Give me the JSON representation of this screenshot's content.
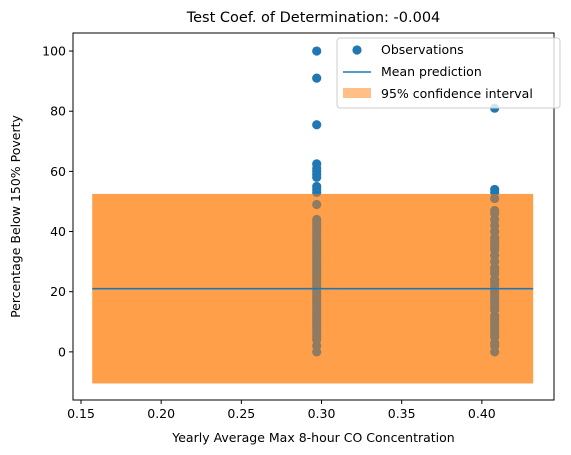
{
  "chart_data": {
    "type": "scatter",
    "title": "Test Coef. of Determination: -0.004",
    "xlabel": "Yearly Average Max 8-hour CO Concentration",
    "ylabel": "Percentage Below 150% Poverty",
    "xlim": [
      0.145,
      0.445
    ],
    "ylim": [
      -16,
      106
    ],
    "xticks": [
      0.15,
      0.2,
      0.25,
      0.3,
      0.35,
      0.4
    ],
    "xtick_labels": [
      "0.15",
      "0.20",
      "0.25",
      "0.30",
      "0.35",
      "0.40"
    ],
    "yticks": [
      0,
      20,
      40,
      60,
      80,
      100
    ],
    "ytick_labels": [
      "0",
      "20",
      "40",
      "60",
      "80",
      "100"
    ],
    "grid": false,
    "legend_position": "top-right",
    "legend": [
      "Observations",
      "Mean prediction",
      "95% confidence interval"
    ],
    "colors": {
      "observations": "#1f77b4",
      "mean_line": "#1f77b4",
      "interval": "#ffbf86"
    },
    "mean_prediction": {
      "x": [
        0.157,
        0.432
      ],
      "y": 21
    },
    "confidence_interval": {
      "x": [
        0.157,
        0.432
      ],
      "lower": -10.5,
      "upper": 52.5
    },
    "series": [
      {
        "name": "Observations",
        "x": [
          0.297,
          0.297,
          0.297,
          0.297,
          0.297,
          0.297,
          0.297,
          0.297,
          0.297,
          0.297,
          0.297,
          0.297,
          0.297,
          0.297,
          0.297,
          0.297,
          0.297,
          0.297,
          0.297,
          0.297,
          0.297,
          0.297,
          0.297,
          0.297,
          0.297,
          0.297,
          0.297,
          0.297,
          0.297,
          0.297,
          0.297,
          0.297,
          0.297,
          0.297,
          0.297,
          0.297,
          0.297,
          0.297,
          0.297,
          0.297,
          0.297,
          0.297,
          0.297,
          0.297,
          0.297,
          0.297,
          0.297,
          0.297,
          0.297,
          0.297,
          0.297,
          0.297,
          0.297,
          0.297,
          0.297,
          0.408,
          0.408,
          0.408,
          0.408,
          0.408,
          0.408,
          0.408,
          0.408,
          0.408,
          0.408,
          0.408,
          0.408,
          0.408,
          0.408,
          0.408,
          0.408,
          0.408,
          0.408,
          0.408,
          0.408,
          0.408,
          0.408,
          0.408,
          0.408,
          0.408,
          0.408,
          0.408,
          0.408,
          0.408,
          0.408,
          0.408,
          0.408,
          0.408,
          0.408,
          0.408,
          0.408,
          0.408,
          0.408,
          0.408,
          0.408
        ],
        "y": [
          100,
          91,
          75.5,
          62.5,
          61,
          60,
          59,
          58,
          55,
          54,
          53,
          49,
          44,
          43,
          42,
          41,
          40,
          39,
          38,
          37,
          36,
          35,
          34,
          33,
          32,
          31,
          30,
          29,
          28,
          27,
          26,
          25,
          24,
          23,
          22,
          21,
          20,
          19,
          18,
          17,
          16,
          15,
          14,
          13,
          12,
          11,
          10,
          9,
          8,
          7,
          6,
          5,
          4,
          2,
          0,
          81,
          54,
          53,
          51,
          47,
          46,
          44,
          42,
          40,
          38,
          37,
          36,
          35,
          34,
          32,
          30,
          28,
          27,
          26,
          24,
          23,
          22,
          20,
          19,
          18,
          17,
          16,
          15,
          14,
          12,
          11,
          10,
          9,
          8,
          7,
          6,
          5,
          3,
          2,
          0
        ]
      }
    ]
  }
}
